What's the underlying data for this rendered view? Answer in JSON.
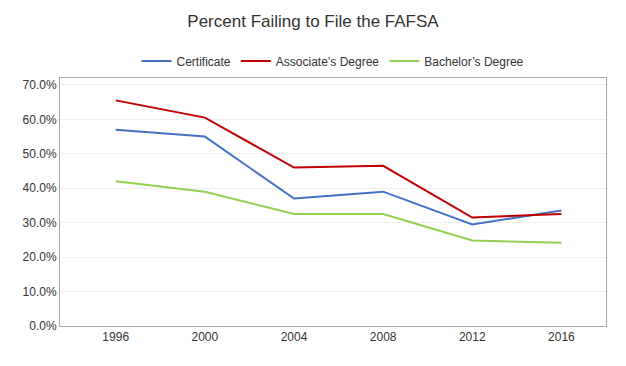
{
  "chart_data": {
    "type": "line",
    "title": "Percent Failing to File the FAFSA",
    "x": [
      1996,
      2000,
      2004,
      2008,
      2012,
      2016
    ],
    "series": [
      {
        "name": "Certificate",
        "color": "#4472C4",
        "values": [
          0.57,
          0.55,
          0.37,
          0.39,
          0.295,
          0.335
        ]
      },
      {
        "name": "Associate’s Degree",
        "color": "#C00000",
        "values": [
          0.655,
          0.605,
          0.46,
          0.465,
          0.315,
          0.325
        ]
      },
      {
        "name": "Bachelor’s Degree",
        "color": "#92D050",
        "values": [
          0.42,
          0.39,
          0.325,
          0.325,
          0.248,
          0.242
        ]
      }
    ],
    "xlim": [
      1993.5,
      2018
    ],
    "xticks": [
      1996,
      2000,
      2004,
      2008,
      2012,
      2016
    ],
    "ylim": [
      0.0,
      0.72
    ],
    "yticks": [
      {
        "value": 0.0,
        "label": "0.0%"
      },
      {
        "value": 0.1,
        "label": "10.0%"
      },
      {
        "value": 0.2,
        "label": "20.0%"
      },
      {
        "value": 0.3,
        "label": "30.0%"
      },
      {
        "value": 0.4,
        "label": "40.0%"
      },
      {
        "value": 0.5,
        "label": "50.0%"
      },
      {
        "value": 0.6,
        "label": "60.0%"
      },
      {
        "value": 0.7,
        "label": "70.0%"
      }
    ],
    "grid": true,
    "legend": "top"
  }
}
